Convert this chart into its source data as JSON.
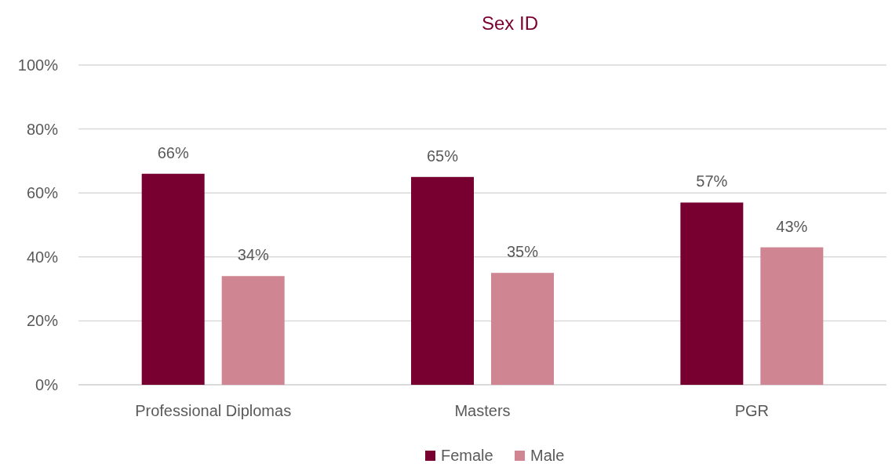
{
  "chart_data": {
    "type": "bar",
    "title": "Sex ID",
    "categories": [
      "Professional Diplomas",
      "Masters",
      "PGR"
    ],
    "series": [
      {
        "name": "Female",
        "color": "#780030",
        "values": [
          66,
          65,
          57
        ],
        "value_labels": [
          "66%",
          "65%",
          "57%"
        ]
      },
      {
        "name": "Male",
        "color": "#d08592",
        "values": [
          34,
          35,
          43
        ],
        "value_labels": [
          "34%",
          "35%",
          "43%"
        ]
      }
    ],
    "ylim": [
      0,
      100
    ],
    "yticks": [
      {
        "value": 0,
        "label": "0%"
      },
      {
        "value": 20,
        "label": "20%"
      },
      {
        "value": 40,
        "label": "40%"
      },
      {
        "value": 60,
        "label": "60%"
      },
      {
        "value": 80,
        "label": "80%"
      },
      {
        "value": 100,
        "label": "100%"
      }
    ],
    "grid": "y",
    "legend": "bottom"
  }
}
